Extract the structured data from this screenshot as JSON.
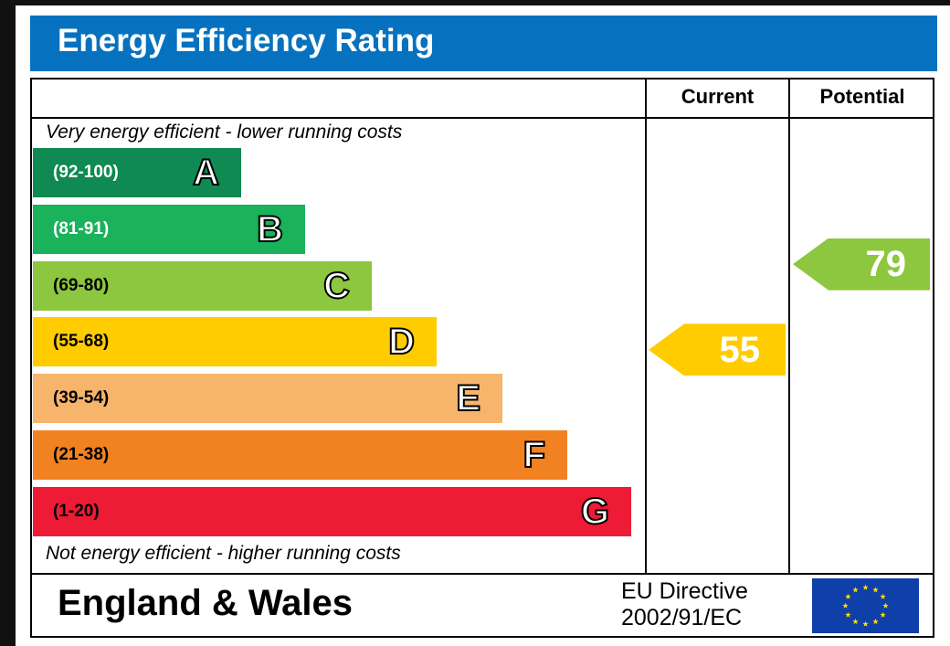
{
  "header": {
    "title": "Energy Efficiency Rating"
  },
  "columns": {
    "current": "Current",
    "potential": "Potential"
  },
  "captions": {
    "top": "Very energy efficient - lower running costs",
    "bottom": "Not energy efficient - higher running costs"
  },
  "footer": {
    "region": "England & Wales",
    "directive_line1": "EU Directive",
    "directive_line2": "2002/91/EC",
    "flag_icon": "eu-flag-icon"
  },
  "chart_data": {
    "type": "bar",
    "title": "Energy Efficiency Rating",
    "categories": [
      "A",
      "B",
      "C",
      "D",
      "E",
      "F",
      "G"
    ],
    "bands": [
      {
        "letter": "A",
        "range": "(92-100)",
        "color": "#0e8a52",
        "text_color": "#ffffff"
      },
      {
        "letter": "B",
        "range": "(81-91)",
        "color": "#1ab25a",
        "text_color": "#ffffff"
      },
      {
        "letter": "C",
        "range": "(69-80)",
        "color": "#8dc63f",
        "text_color": "#000000"
      },
      {
        "letter": "D",
        "range": "(55-68)",
        "color": "#ffcc00",
        "text_color": "#000000"
      },
      {
        "letter": "E",
        "range": "(39-54)",
        "color": "#f7b46b",
        "text_color": "#000000"
      },
      {
        "letter": "F",
        "range": "(21-38)",
        "color": "#f28121",
        "text_color": "#000000"
      },
      {
        "letter": "G",
        "range": "(1-20)",
        "color": "#ed1b35",
        "text_color": "#000000"
      }
    ],
    "series": [
      {
        "name": "Current",
        "value": 55,
        "band": "D",
        "color": "#ffcc00"
      },
      {
        "name": "Potential",
        "value": 79,
        "band": "C",
        "color": "#8dc63f"
      }
    ],
    "xlabel": "",
    "ylabel": ""
  }
}
